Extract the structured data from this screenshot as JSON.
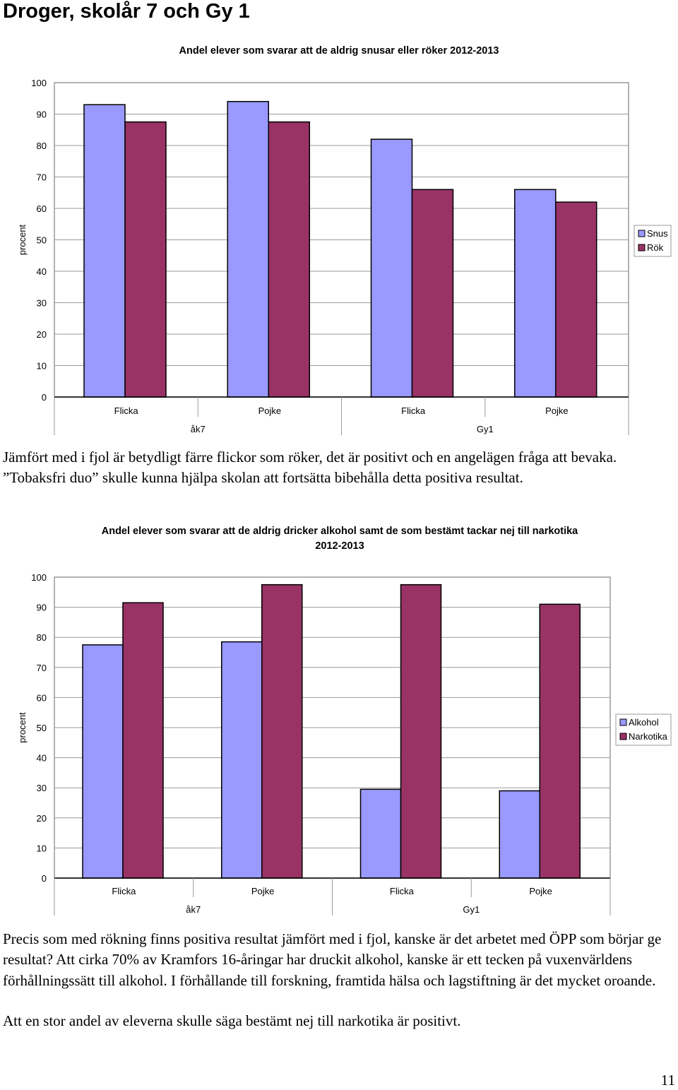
{
  "page": {
    "title": "Droger, skolår 7 och Gy 1",
    "paragraph1": "Jämfört med i fjol är betydligt färre flickor som röker, det är positivt och en angelägen fråga att bevaka. ”Tobaksfri duo” skulle kunna hjälpa skolan att fortsätta bibehålla detta positiva resultat.",
    "paragraph2": "Precis som med rökning finns positiva resultat jämfört med i fjol, kanske är det arbetet med ÖPP som börjar ge resultat? Att cirka 70% av Kramfors 16-åringar har druckit alkohol, kanske är ett tecken på vuxenvärldens förhållningssätt till alkohol. I förhållande till forskning, framtida hälsa och lagstiftning är det mycket oroande.",
    "paragraph3": "Att en stor andel av eleverna skulle säga bestämt nej till narkotika är positivt.",
    "page_number": "11"
  },
  "chart_data": [
    {
      "type": "bar",
      "title": "Andel elever som svarar att de aldrig snusar eller röker 2012-2013",
      "title_lines": [
        "Andel elever som svarar att de aldrig snusar eller röker 2012-2013"
      ],
      "ylabel": "procent",
      "xlabel": "",
      "ylim": [
        0,
        100
      ],
      "yticks": [
        0,
        10,
        20,
        30,
        40,
        50,
        60,
        70,
        80,
        90,
        100
      ],
      "grid": true,
      "legend_position": "right",
      "categories": [
        "Flicka",
        "Pojke",
        "Flicka",
        "Pojke"
      ],
      "groups": [
        {
          "label": "åk7",
          "span": 2
        },
        {
          "label": "Gy1",
          "span": 2
        }
      ],
      "series": [
        {
          "name": "Snus",
          "color": "#9999ff",
          "values": [
            93,
            94,
            82,
            66
          ]
        },
        {
          "name": "Rök",
          "color": "#993366",
          "values": [
            87.5,
            87.5,
            66,
            62
          ]
        }
      ]
    },
    {
      "type": "bar",
      "title": "Andel elever som svarar att de aldrig dricker alkohol samt de som bestämt tackar nej till narkotika 2012-2013",
      "title_lines": [
        "Andel elever som svarar att de aldrig dricker alkohol samt de som bestämt tackar nej till narkotika",
        "2012-2013"
      ],
      "ylabel": "procent",
      "xlabel": "",
      "ylim": [
        0,
        100
      ],
      "yticks": [
        0,
        10,
        20,
        30,
        40,
        50,
        60,
        70,
        80,
        90,
        100
      ],
      "grid": true,
      "legend_position": "right",
      "categories": [
        "Flicka",
        "Pojke",
        "Flicka",
        "Pojke"
      ],
      "groups": [
        {
          "label": "åk7",
          "span": 2
        },
        {
          "label": "Gy1",
          "span": 2
        }
      ],
      "series": [
        {
          "name": "Alkohol",
          "color": "#9999ff",
          "values": [
            77.5,
            78.5,
            29.5,
            29
          ]
        },
        {
          "name": "Narkotika",
          "color": "#993366",
          "values": [
            91.5,
            97.5,
            97.5,
            91
          ]
        }
      ]
    }
  ]
}
